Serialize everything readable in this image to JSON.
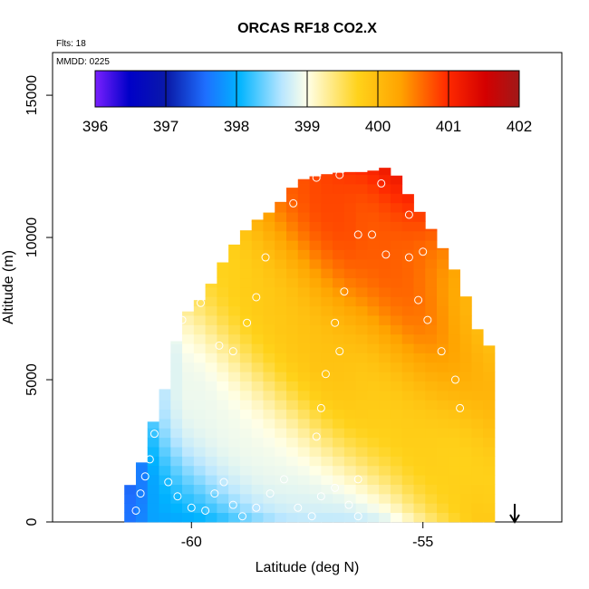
{
  "chart_data": {
    "type": "heatmap",
    "title": "ORCAS RF18 CO2.X",
    "xlabel": "Latitude (deg N)",
    "ylabel": "Altitude (m)",
    "xlim": [
      -63.0,
      -52.0
    ],
    "ylim": [
      0,
      16500
    ],
    "x_ticks": [
      -60,
      -55
    ],
    "x_tick_labels": [
      "-60",
      "-55"
    ],
    "y_ticks": [
      0,
      5000,
      10000,
      15000
    ],
    "y_tick_labels": [
      "0",
      "5000",
      "10000",
      "15000"
    ],
    "annotations": {
      "flights": "Flts: 18",
      "date": "MMDD: 0225"
    },
    "colorbar": {
      "min": 396,
      "max": 402,
      "ticks": [
        396,
        397,
        398,
        399,
        400,
        401,
        402
      ],
      "tick_labels": [
        "396",
        "397",
        "398",
        "399",
        "400",
        "401",
        "402"
      ]
    },
    "grid_cell": {
      "dx_deg": 0.25,
      "dy_m": 330
    },
    "profiles": [
      {
        "lat": -61.2,
        "alt_top": 1300,
        "val_bottom": 397.5,
        "val_top": 398.0
      },
      {
        "lat": -60.9,
        "alt_top": 3200,
        "val_bottom": 397.9,
        "val_top": 398.6
      },
      {
        "lat": -60.6,
        "alt_top": 4500,
        "val_bottom": 398.0,
        "val_top": 399.3
      },
      {
        "lat": -60.2,
        "alt_top": 7200,
        "val_bottom": 398.1,
        "val_top": 399.9
      },
      {
        "lat": -59.7,
        "alt_top": 8000,
        "val_bottom": 398.2,
        "val_top": 400.0
      },
      {
        "lat": -59.2,
        "alt_top": 9500,
        "val_bottom": 398.3,
        "val_top": 400.2
      },
      {
        "lat": -58.7,
        "alt_top": 10500,
        "val_bottom": 398.4,
        "val_top": 400.4
      },
      {
        "lat": -58.2,
        "alt_top": 11000,
        "val_bottom": 398.5,
        "val_top": 400.6
      },
      {
        "lat": -57.7,
        "alt_top": 12000,
        "val_bottom": 398.6,
        "val_top": 400.8
      },
      {
        "lat": -57.2,
        "alt_top": 12200,
        "val_bottom": 398.7,
        "val_top": 401.0
      },
      {
        "lat": -56.7,
        "alt_top": 12300,
        "val_bottom": 398.8,
        "val_top": 401.1
      },
      {
        "lat": -56.2,
        "alt_top": 12300,
        "val_bottom": 398.9,
        "val_top": 401.1
      },
      {
        "lat": -55.7,
        "alt_top": 12500,
        "val_bottom": 399.0,
        "val_top": 401.2
      },
      {
        "lat": -55.2,
        "alt_top": 11200,
        "val_bottom": 399.2,
        "val_top": 401.2
      },
      {
        "lat": -54.7,
        "alt_top": 10000,
        "val_bottom": 399.4,
        "val_top": 401.0
      },
      {
        "lat": -54.2,
        "alt_top": 8500,
        "val_bottom": 399.6,
        "val_top": 400.6
      },
      {
        "lat": -53.7,
        "alt_top": 6200,
        "val_bottom": 399.8,
        "val_top": 400.2
      }
    ],
    "observations": [
      {
        "lat": -61.2,
        "alt": 400
      },
      {
        "lat": -61.1,
        "alt": 1000
      },
      {
        "lat": -61.0,
        "alt": 1600
      },
      {
        "lat": -60.9,
        "alt": 2200
      },
      {
        "lat": -60.8,
        "alt": 3100
      },
      {
        "lat": -60.5,
        "alt": 1400
      },
      {
        "lat": -60.3,
        "alt": 900
      },
      {
        "lat": -60.0,
        "alt": 500
      },
      {
        "lat": -59.7,
        "alt": 400
      },
      {
        "lat": -59.5,
        "alt": 1000
      },
      {
        "lat": -59.3,
        "alt": 1400
      },
      {
        "lat": -59.1,
        "alt": 600
      },
      {
        "lat": -58.9,
        "alt": 200
      },
      {
        "lat": -58.6,
        "alt": 500
      },
      {
        "lat": -58.3,
        "alt": 1000
      },
      {
        "lat": -58.0,
        "alt": 1500
      },
      {
        "lat": -57.7,
        "alt": 500
      },
      {
        "lat": -57.4,
        "alt": 200
      },
      {
        "lat": -57.2,
        "alt": 900
      },
      {
        "lat": -56.9,
        "alt": 1200
      },
      {
        "lat": -56.6,
        "alt": 600
      },
      {
        "lat": -56.4,
        "alt": 200
      },
      {
        "lat": -56.4,
        "alt": 1500
      },
      {
        "lat": -60.2,
        "alt": 7100
      },
      {
        "lat": -59.8,
        "alt": 7700
      },
      {
        "lat": -59.4,
        "alt": 6200
      },
      {
        "lat": -59.1,
        "alt": 6000
      },
      {
        "lat": -58.8,
        "alt": 7000
      },
      {
        "lat": -58.6,
        "alt": 7900
      },
      {
        "lat": -58.4,
        "alt": 9300
      },
      {
        "lat": -57.8,
        "alt": 11200
      },
      {
        "lat": -57.3,
        "alt": 12100
      },
      {
        "lat": -56.8,
        "alt": 12200
      },
      {
        "lat": -56.4,
        "alt": 10100
      },
      {
        "lat": -56.1,
        "alt": 10100
      },
      {
        "lat": -55.8,
        "alt": 9400
      },
      {
        "lat": -55.3,
        "alt": 9300
      },
      {
        "lat": -55.1,
        "alt": 7800
      },
      {
        "lat": -54.9,
        "alt": 7100
      },
      {
        "lat": -54.6,
        "alt": 6000
      },
      {
        "lat": -54.3,
        "alt": 5000
      },
      {
        "lat": -56.7,
        "alt": 8100
      },
      {
        "lat": -56.9,
        "alt": 7000
      },
      {
        "lat": -56.8,
        "alt": 6000
      },
      {
        "lat": -57.1,
        "alt": 5200
      },
      {
        "lat": -57.2,
        "alt": 4000
      },
      {
        "lat": -57.3,
        "alt": 3000
      },
      {
        "lat": -54.2,
        "alt": 4000
      },
      {
        "lat": -55.9,
        "alt": 11900
      },
      {
        "lat": -55.3,
        "alt": 10800
      },
      {
        "lat": -55.0,
        "alt": 9500
      }
    ]
  }
}
